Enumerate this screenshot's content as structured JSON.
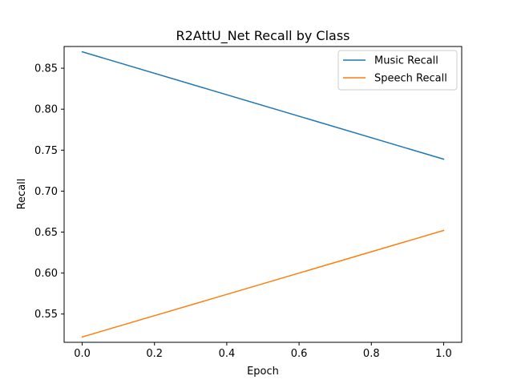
{
  "chart_data": {
    "type": "line",
    "title": "R2AttU_Net Recall by Class",
    "xlabel": "Epoch",
    "ylabel": "Recall",
    "x": [
      0.0,
      1.0
    ],
    "xlim": [
      -0.05,
      1.05
    ],
    "ylim": [
      0.5155,
      0.8765
    ],
    "xticks": [
      0.0,
      0.2,
      0.4,
      0.6,
      0.8,
      1.0
    ],
    "xtick_labels": [
      "0.0",
      "0.2",
      "0.4",
      "0.6",
      "0.8",
      "1.0"
    ],
    "yticks": [
      0.55,
      0.6,
      0.65,
      0.7,
      0.75,
      0.8,
      0.85
    ],
    "ytick_labels": [
      "0.55",
      "0.60",
      "0.65",
      "0.70",
      "0.75",
      "0.80",
      "0.85"
    ],
    "grid": false,
    "legend_position": "top-right",
    "series": [
      {
        "name": "Music Recall",
        "color": "#1f77b4",
        "values": [
          0.87,
          0.739
        ]
      },
      {
        "name": "Speech Recall",
        "color": "#ff7f0e",
        "values": [
          0.522,
          0.652
        ]
      }
    ]
  }
}
